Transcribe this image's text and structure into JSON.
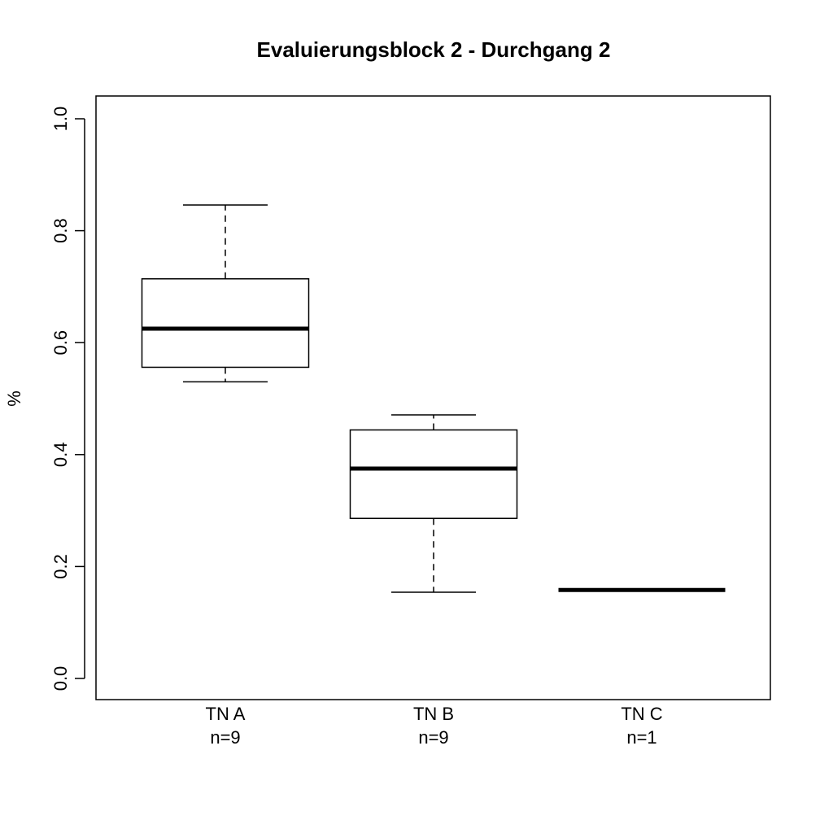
{
  "chart_data": {
    "type": "boxplot",
    "title": "Evaluierungsblock 2 - Durchgang 2",
    "xlabel": "",
    "ylabel": "%",
    "ylim": [
      0.0,
      1.0
    ],
    "yticks": [
      0.0,
      0.2,
      0.4,
      0.6,
      0.8,
      1.0
    ],
    "ytick_labels": [
      "0.0",
      "0.2",
      "0.4",
      "0.6",
      "0.8",
      "1.0"
    ],
    "grid": false,
    "categories": [
      "TN A",
      "TN B",
      "TN C"
    ],
    "counts": [
      "n=9",
      "n=9",
      "n=1"
    ],
    "boxes": [
      {
        "category": "TN A",
        "whisker_low": 0.53,
        "q1": 0.556,
        "median": 0.625,
        "q3": 0.714,
        "whisker_high": 0.846
      },
      {
        "category": "TN B",
        "whisker_low": 0.154,
        "q1": 0.286,
        "median": 0.375,
        "q3": 0.444,
        "whisker_high": 0.471
      },
      {
        "category": "TN C",
        "whisker_low": 0.158,
        "q1": 0.158,
        "median": 0.158,
        "q3": 0.158,
        "whisker_high": 0.158
      }
    ],
    "colors": {
      "box_fill": "#ffffff",
      "stroke": "#000000"
    }
  }
}
